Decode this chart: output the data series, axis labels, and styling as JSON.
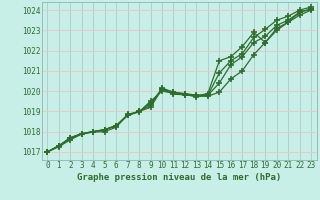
{
  "title": "Graphe pression niveau de la mer (hPa)",
  "bg_color": "#c8eee8",
  "grid_color_h": "#e8c8c8",
  "grid_color_v": "#b0d0cc",
  "line_color": "#2d6e2d",
  "marker": "+",
  "markersize": 4,
  "markeredgewidth": 1.2,
  "linewidth": 0.9,
  "xlim": [
    -0.5,
    23.5
  ],
  "ylim": [
    1016.6,
    1024.4
  ],
  "xticks": [
    0,
    1,
    2,
    3,
    4,
    5,
    6,
    7,
    8,
    9,
    10,
    11,
    12,
    13,
    14,
    15,
    16,
    17,
    18,
    19,
    20,
    21,
    22,
    23
  ],
  "yticks": [
    1017,
    1018,
    1019,
    1020,
    1021,
    1022,
    1023,
    1024
  ],
  "series": [
    [
      1017.0,
      1017.3,
      1017.7,
      1017.9,
      1018.0,
      1018.1,
      1018.3,
      1018.8,
      1019.0,
      1019.2,
      1020.1,
      1019.85,
      1019.82,
      1019.75,
      1019.75,
      1019.95,
      1020.6,
      1021.0,
      1021.8,
      1022.4,
      1023.0,
      1023.4,
      1023.75,
      1024.0
    ],
    [
      1017.0,
      1017.3,
      1017.7,
      1017.9,
      1018.0,
      1018.1,
      1018.3,
      1018.8,
      1019.0,
      1019.3,
      1020.15,
      1019.95,
      1019.88,
      1019.8,
      1019.8,
      1020.4,
      1021.3,
      1021.7,
      1022.4,
      1022.7,
      1023.25,
      1023.5,
      1023.9,
      1024.05
    ],
    [
      1017.0,
      1017.3,
      1017.65,
      1017.9,
      1018.0,
      1018.1,
      1018.28,
      1018.85,
      1019.0,
      1019.4,
      1020.1,
      1019.95,
      1019.83,
      1019.73,
      1019.8,
      1020.9,
      1021.5,
      1021.85,
      1022.65,
      1023.05,
      1023.5,
      1023.7,
      1024.0,
      1024.15
    ],
    [
      1017.0,
      1017.25,
      1017.6,
      1017.88,
      1017.98,
      1018.0,
      1018.22,
      1018.82,
      1018.97,
      1019.5,
      1020.0,
      1019.9,
      1019.85,
      1019.77,
      1019.88,
      1021.5,
      1021.7,
      1022.2,
      1022.9,
      1022.4,
      1023.1,
      1023.4,
      1023.9,
      1024.05
    ]
  ]
}
